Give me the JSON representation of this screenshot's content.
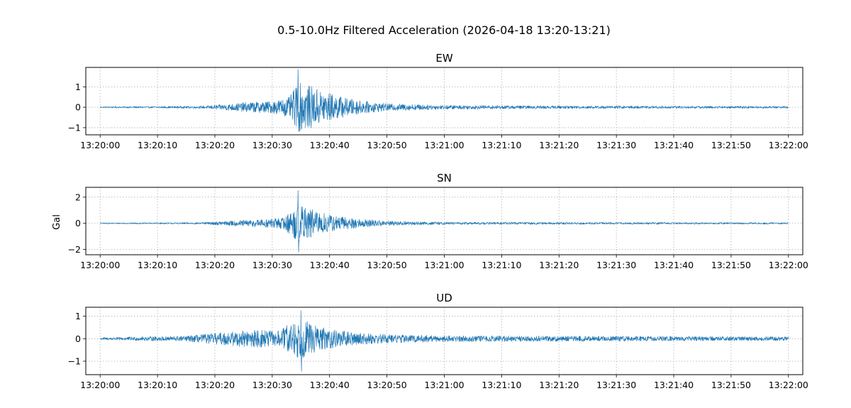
{
  "chart_data": {
    "type": "line",
    "title": "0.5-10.0Hz Filtered Acceleration (2026-04-18 13:20-13:21)",
    "ylabel": "Gal",
    "x_tick_labels": [
      "13:20:00",
      "13:20:10",
      "13:20:20",
      "13:20:30",
      "13:20:40",
      "13:20:50",
      "13:21:00",
      "13:21:10",
      "13:21:20",
      "13:21:30",
      "13:21:40",
      "13:21:50",
      "13:22:00"
    ],
    "x_range_seconds": [
      -2.5,
      122.5
    ],
    "data_range_seconds": [
      0,
      120
    ],
    "grid": true,
    "color": "#1f77b4",
    "panels": [
      {
        "name": "EW",
        "ylim": [
          -1.35,
          1.95
        ],
        "yticks": [
          -1,
          0,
          1
        ],
        "ytick_labels": [
          "−1",
          "0",
          "1"
        ],
        "peak": 1.85,
        "trough": -1.2,
        "peak_time_s": 34.5,
        "envelope": [
          [
            0,
            0.03
          ],
          [
            10,
            0.04
          ],
          [
            18,
            0.06
          ],
          [
            22,
            0.15
          ],
          [
            26,
            0.25
          ],
          [
            30,
            0.3
          ],
          [
            33,
            0.5
          ],
          [
            34.5,
            1.2
          ],
          [
            36,
            1.1
          ],
          [
            38,
            0.9
          ],
          [
            40,
            0.7
          ],
          [
            43,
            0.45
          ],
          [
            46,
            0.3
          ],
          [
            50,
            0.18
          ],
          [
            60,
            0.1
          ],
          [
            80,
            0.07
          ],
          [
            100,
            0.06
          ],
          [
            120,
            0.05
          ]
        ]
      },
      {
        "name": "SN",
        "ylim": [
          -2.4,
          2.75
        ],
        "yticks": [
          -2,
          0,
          2
        ],
        "ytick_labels": [
          "−2",
          "0",
          "2"
        ],
        "peak": 2.5,
        "trough": -2.2,
        "peak_time_s": 34.5,
        "envelope": [
          [
            0,
            0.04
          ],
          [
            10,
            0.05
          ],
          [
            18,
            0.07
          ],
          [
            23,
            0.2
          ],
          [
            28,
            0.3
          ],
          [
            32,
            0.45
          ],
          [
            34.5,
            1.5
          ],
          [
            36,
            1.2
          ],
          [
            38,
            0.9
          ],
          [
            41,
            0.6
          ],
          [
            44,
            0.4
          ],
          [
            48,
            0.25
          ],
          [
            52,
            0.15
          ],
          [
            60,
            0.1
          ],
          [
            80,
            0.08
          ],
          [
            100,
            0.07
          ],
          [
            120,
            0.06
          ]
        ]
      },
      {
        "name": "UD",
        "ylim": [
          -1.6,
          1.4
        ],
        "yticks": [
          -1,
          0,
          1
        ],
        "ytick_labels": [
          "−1",
          "0",
          "1"
        ],
        "peak": 1.25,
        "trough": -1.45,
        "peak_time_s": 35.0,
        "envelope": [
          [
            0,
            0.05
          ],
          [
            5,
            0.08
          ],
          [
            15,
            0.12
          ],
          [
            20,
            0.25
          ],
          [
            24,
            0.35
          ],
          [
            28,
            0.4
          ],
          [
            31,
            0.35
          ],
          [
            34.5,
            0.9
          ],
          [
            36,
            0.8
          ],
          [
            38,
            0.55
          ],
          [
            42,
            0.35
          ],
          [
            46,
            0.25
          ],
          [
            52,
            0.18
          ],
          [
            60,
            0.14
          ],
          [
            80,
            0.12
          ],
          [
            100,
            0.1
          ],
          [
            120,
            0.09
          ]
        ]
      }
    ]
  }
}
